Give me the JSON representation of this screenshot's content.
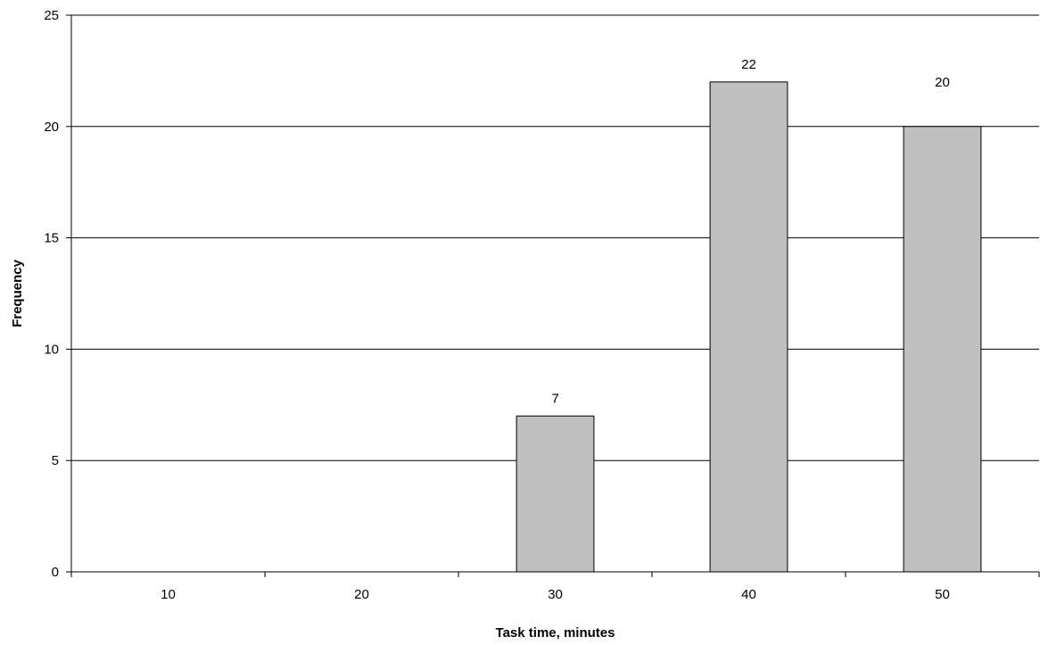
{
  "chart_data": {
    "type": "bar",
    "title": "",
    "xlabel": "Task time, minutes",
    "ylabel": "Frequency",
    "categories": [
      "10",
      "20",
      "30",
      "40",
      "50"
    ],
    "values": [
      0,
      0,
      7,
      22,
      20
    ],
    "data_labels": [
      "",
      "",
      "7",
      "22",
      "20"
    ],
    "ylim": [
      0,
      25
    ],
    "yticks": [
      0,
      5,
      10,
      15,
      20,
      25
    ],
    "grid": true,
    "legend": "none",
    "colors": {
      "bar_fill": "#c0c0c0",
      "bar_stroke": "#000000",
      "grid": "#000000"
    }
  }
}
